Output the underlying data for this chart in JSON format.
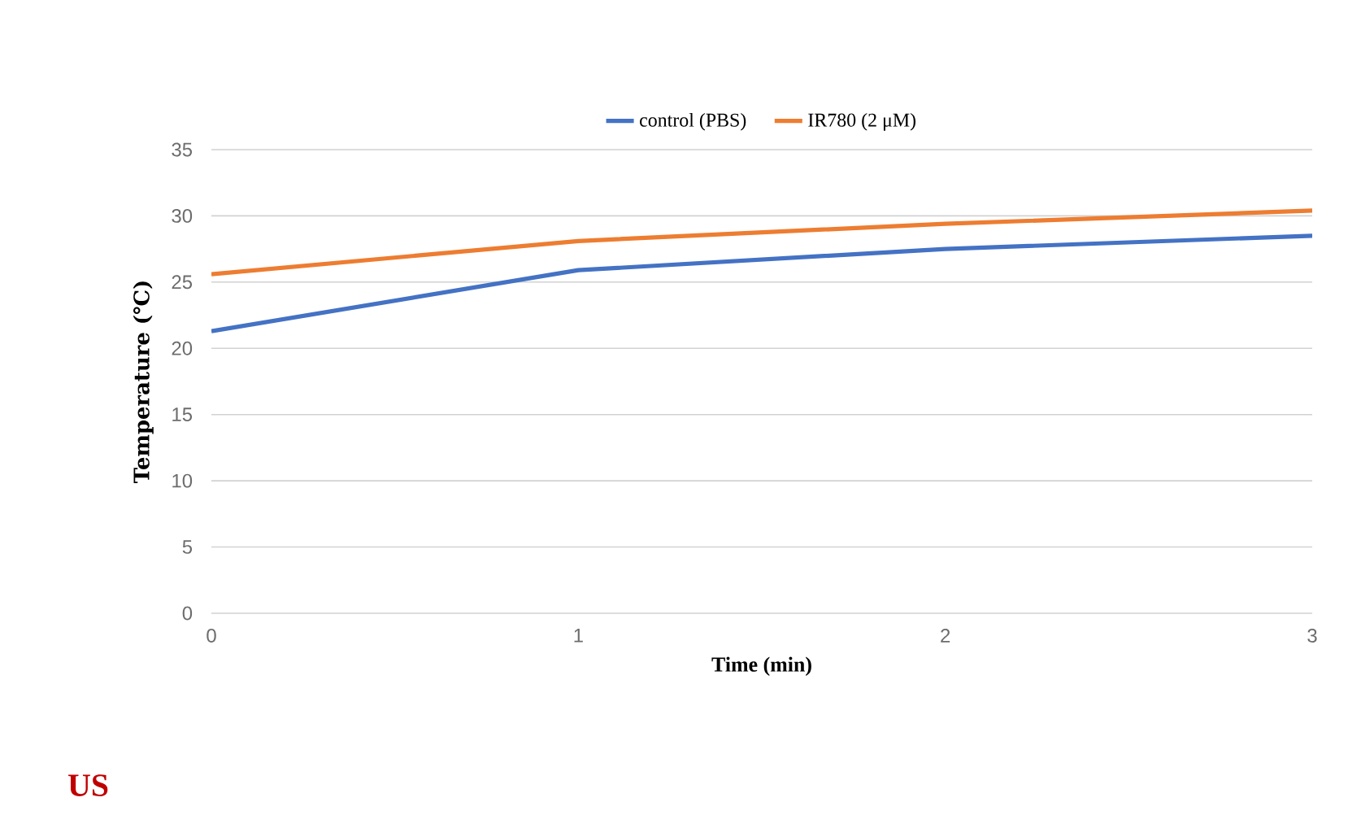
{
  "chart_data": {
    "type": "line",
    "xlabel": "Time (min)",
    "ylabel": "Temperature  (℃)",
    "x": [
      0,
      1,
      2,
      3
    ],
    "series": [
      {
        "name": "control (PBS)",
        "color": "#4472c4",
        "values": [
          21.3,
          25.9,
          27.5,
          28.5
        ]
      },
      {
        "name": "IR780 (2 μM)",
        "color": "#ed7d31",
        "values": [
          25.6,
          28.1,
          29.4,
          30.4
        ]
      }
    ],
    "xlim": [
      0,
      3
    ],
    "xticks": [
      0,
      1,
      2,
      3
    ],
    "ylim": [
      0,
      35
    ],
    "yticks": [
      0,
      5,
      10,
      15,
      20,
      25,
      30,
      35
    ],
    "grid": "y",
    "legend": "top",
    "marker": "none",
    "line_style": "solid",
    "annotations": [
      "US"
    ]
  }
}
